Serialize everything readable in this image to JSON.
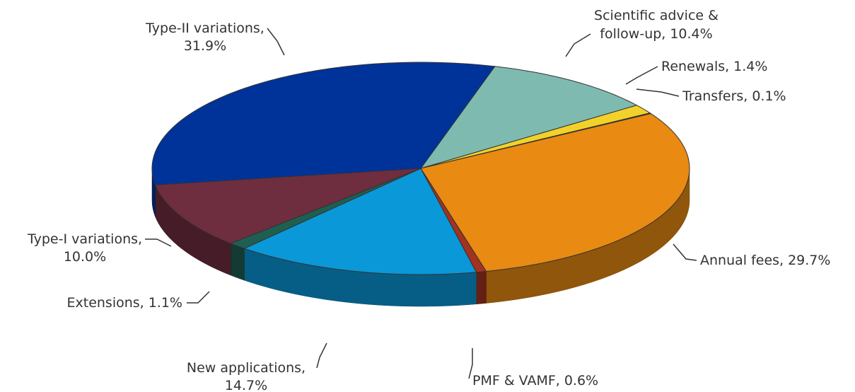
{
  "chart_data": {
    "type": "pie",
    "categories": [
      "Scientific advice &",
      "Renewals,",
      "Transfers,",
      "Annual fees,",
      "PMF & VAMF,",
      "New applications,",
      "Extensions,",
      "Type-I variations,",
      "Type-II variations,"
    ],
    "category_lines": [
      [
        "Scientific advice &",
        "follow-up,"
      ]
    ],
    "values": [
      10.4,
      1.4,
      0.1,
      29.7,
      0.6,
      14.7,
      1.1,
      10.0,
      31.9
    ],
    "value_labels": [
      "10.4%",
      "1.4%",
      "0.1%",
      "29.7%",
      "0.6%",
      "14.7%",
      "1.1%",
      "10.0%",
      "31.9%"
    ],
    "colors": [
      "#7fbab0",
      "#f2d22a",
      "#1f5f52",
      "#e98a12",
      "#a3321f",
      "#0a98d8",
      "#1f5f52",
      "#6f2d40",
      "#003399"
    ]
  }
}
